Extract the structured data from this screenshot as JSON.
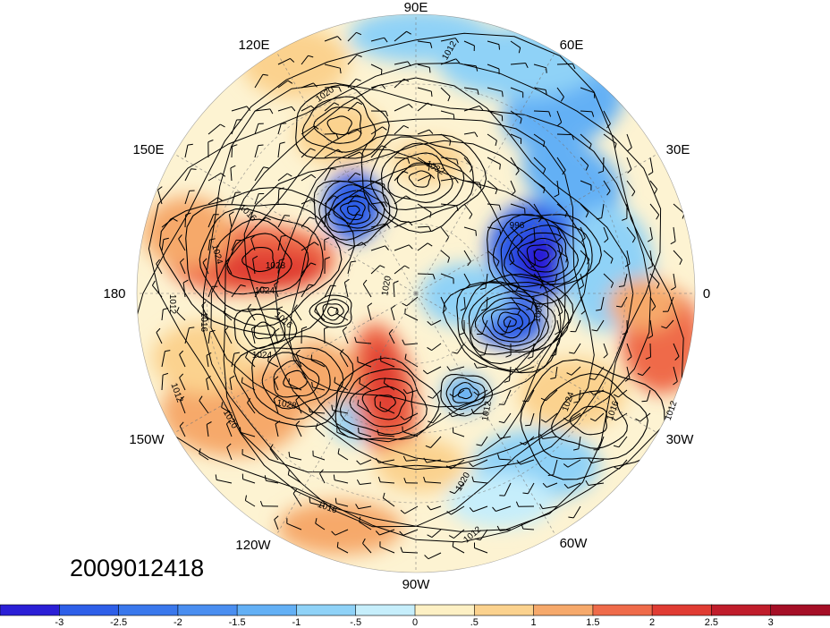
{
  "timestamp": "2009012418",
  "longitude_labels": [
    "90E",
    "60E",
    "30E",
    "0",
    "30W",
    "60W",
    "90W",
    "120W",
    "150W",
    "180",
    "150E",
    "120E"
  ],
  "contour_labels": [
    "1012",
    "1020",
    "1032",
    "1016",
    "1024",
    "1028",
    "1024",
    "1028",
    "1016",
    "1024",
    "1020",
    "1012",
    "1016",
    "1012",
    "1020",
    "1012",
    "1016",
    "1012",
    "1024",
    "1016",
    "1012",
    "1008",
    "1020",
    "996"
  ],
  "colorbar": {
    "ticks": [
      "-3",
      "-2.5",
      "-2",
      "-1.5",
      "-1",
      "-.5",
      "0",
      ".5",
      "1",
      "1.5",
      "2",
      "2.5",
      "3"
    ],
    "colors": [
      "#2b1fd6",
      "#2e5fe8",
      "#4a8ef0",
      "#63b0f5",
      "#8fd2f7",
      "#c6eefb",
      "#ffffff",
      "#fdf0c4",
      "#fbd28e",
      "#f6a96b",
      "#ef6b4a",
      "#e03c33",
      "#a50f26"
    ]
  },
  "colors": {
    "positive_strong": "#e03c33",
    "positive_weak": "#fbd28e",
    "negative_strong": "#2b1fd6",
    "negative_weak": "#8fd2f7"
  }
}
